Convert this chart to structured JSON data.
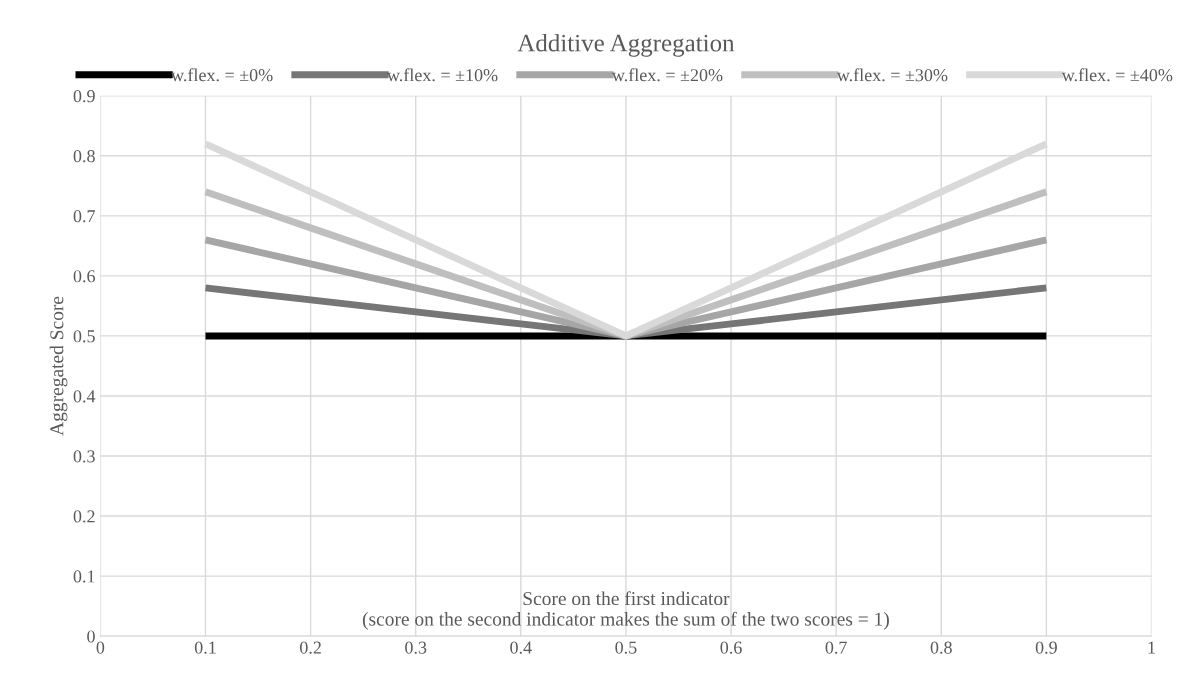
{
  "chart_data": {
    "type": "line",
    "title": "Additive Aggregation",
    "xlabel": "Score on the first indicator\n(score on the second indicator makes the sum of the two scores = 1)",
    "ylabel": "Aggregated Score",
    "x": [
      0.1,
      0.2,
      0.3,
      0.4,
      0.5,
      0.6,
      0.7,
      0.8,
      0.9
    ],
    "series": [
      {
        "name": "w.flex. = ±0%",
        "color": "#000000",
        "values": [
          0.5,
          0.5,
          0.5,
          0.5,
          0.5,
          0.5,
          0.5,
          0.5,
          0.5
        ]
      },
      {
        "name": "w.flex. = ±10%",
        "color": "#767676",
        "values": [
          0.58,
          0.56,
          0.54,
          0.52,
          0.5,
          0.52,
          0.54,
          0.56,
          0.58
        ]
      },
      {
        "name": "w.flex. = ±20%",
        "color": "#a6a6a6",
        "values": [
          0.66,
          0.62,
          0.58,
          0.54,
          0.5,
          0.54,
          0.58,
          0.62,
          0.66
        ]
      },
      {
        "name": "w.flex. = ±30%",
        "color": "#bfbfbf",
        "values": [
          0.74,
          0.68,
          0.62,
          0.56,
          0.5,
          0.56,
          0.62,
          0.68,
          0.74
        ]
      },
      {
        "name": "w.flex. = ±40%",
        "color": "#d9d9d9",
        "values": [
          0.82,
          0.74,
          0.66,
          0.58,
          0.5,
          0.58,
          0.66,
          0.74,
          0.82
        ]
      }
    ],
    "xlim": [
      0,
      1
    ],
    "xticks": [
      0,
      0.1,
      0.2,
      0.3,
      0.4,
      0.5,
      0.6,
      0.7,
      0.8,
      0.9,
      1
    ],
    "ylim": [
      0,
      0.9
    ],
    "yticks": [
      0,
      0.1,
      0.2,
      0.3,
      0.4,
      0.5,
      0.6,
      0.7,
      0.8,
      0.9
    ],
    "grid": true,
    "legend": "top",
    "marker": "none",
    "line_style": "solid"
  }
}
